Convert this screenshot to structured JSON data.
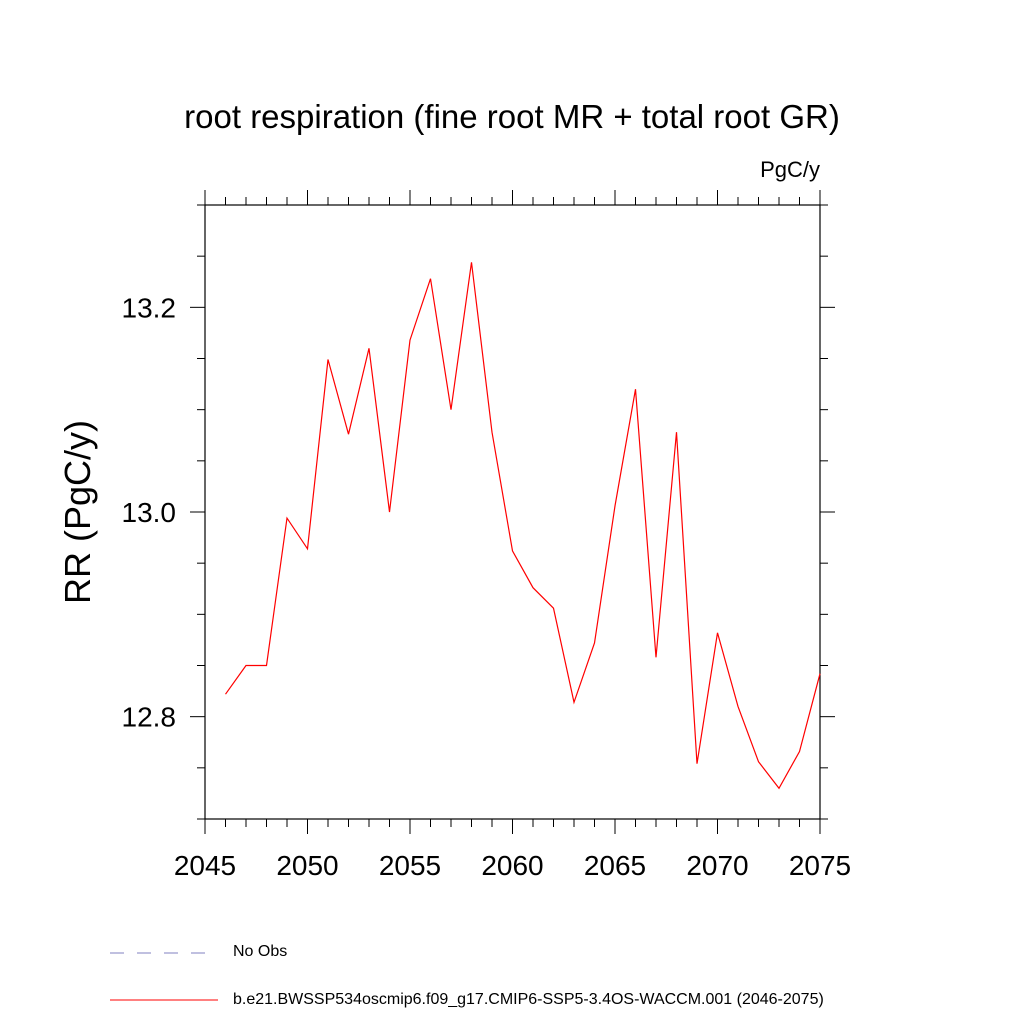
{
  "chart_data": {
    "type": "line",
    "title": "root respiration (fine root MR + total root GR)",
    "units_label": "PgC/y",
    "ylabel": "RR  (PgC/y)",
    "xlabel": "",
    "xlim": [
      2045,
      2075
    ],
    "ylim": [
      12.7,
      13.3
    ],
    "x_ticks": [
      2045,
      2050,
      2055,
      2060,
      2065,
      2070,
      2075
    ],
    "y_ticks": [
      12.8,
      13.0,
      13.2
    ],
    "y_tick_labels": [
      "12.8",
      "13.0",
      "13.2"
    ],
    "x_minor_step": 1,
    "y_minor_step": 0.05,
    "series": [
      {
        "name": "b.e21.BWSSP534oscmip6.f09_g17.CMIP6-SSP5-3.4OS-WACCM.001 (2046-2075)",
        "color": "#ff0000",
        "x": [
          2046,
          2047,
          2048,
          2049,
          2050,
          2051,
          2052,
          2053,
          2054,
          2055,
          2056,
          2057,
          2058,
          2059,
          2060,
          2061,
          2062,
          2063,
          2064,
          2065,
          2066,
          2067,
          2068,
          2069,
          2070,
          2071,
          2072,
          2073,
          2074,
          2075
        ],
        "y": [
          12.822,
          12.85,
          12.85,
          12.994,
          12.964,
          13.149,
          13.076,
          13.16,
          13.0,
          13.168,
          13.228,
          13.1,
          13.244,
          13.078,
          12.962,
          12.926,
          12.906,
          12.814,
          12.872,
          13.006,
          13.12,
          12.858,
          13.078,
          12.754,
          12.882,
          12.81,
          12.756,
          12.73,
          12.766,
          12.842
        ]
      }
    ],
    "legend": [
      {
        "label": "No Obs",
        "style": "dashed",
        "color": "#8080c0"
      },
      {
        "label": "b.e21.BWSSP534oscmip6.f09_g17.CMIP6-SSP5-3.4OS-WACCM.001 (2046-2075)",
        "style": "solid",
        "color": "#ff0000"
      }
    ]
  }
}
